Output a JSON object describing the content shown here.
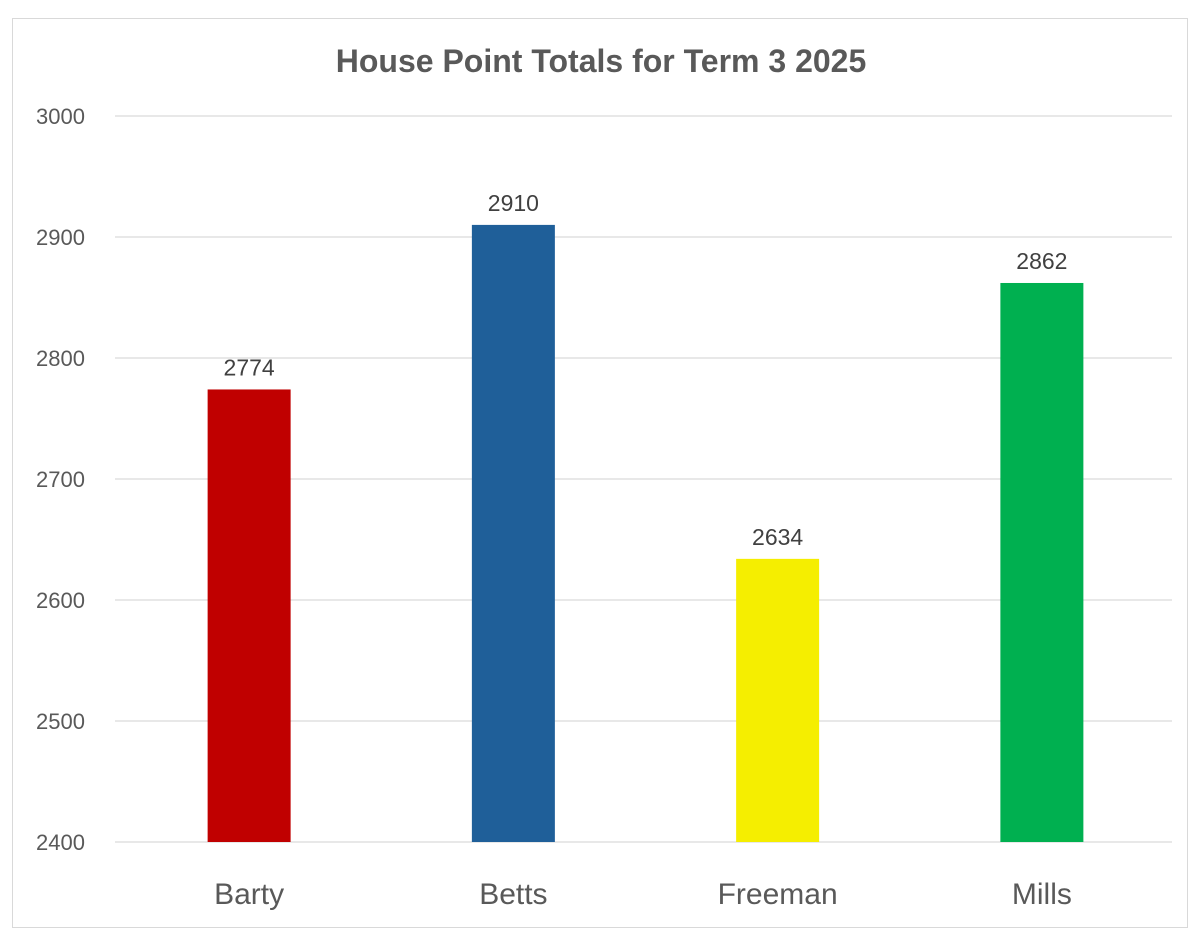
{
  "chart_data": {
    "type": "bar",
    "title": "House Point Totals for Term 3 2025",
    "categories": [
      "Barty",
      "Betts",
      "Freeman",
      "Mills"
    ],
    "values": [
      2774,
      2910,
      2634,
      2862
    ],
    "colors": [
      "#C00000",
      "#1F5F99",
      "#F5EE00",
      "#00B050"
    ],
    "xlabel": "",
    "ylabel": "",
    "ylim": [
      2400,
      3000
    ],
    "yticks": [
      2400,
      2500,
      2600,
      2700,
      2800,
      2900,
      3000
    ],
    "grid": true,
    "data_labels": true
  }
}
